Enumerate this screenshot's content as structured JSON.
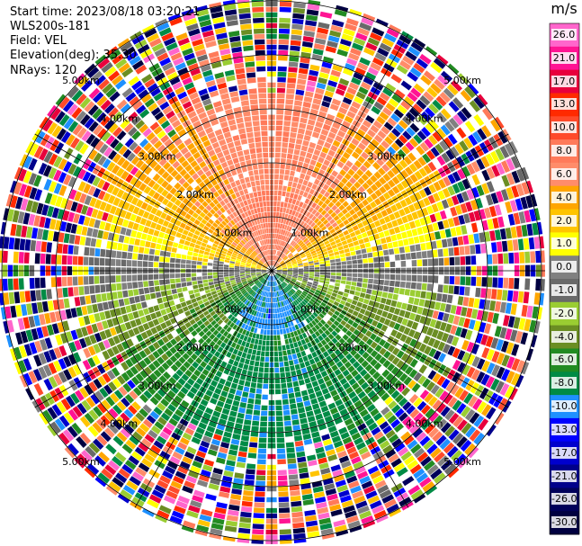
{
  "info": {
    "start_time": "Start time: 2023/08/18 03:20:21",
    "instrument": "WLS200s-181",
    "field": "Field: VEL",
    "elevation": "Elevation(deg): 35.30",
    "nrays": "NRays: 120"
  },
  "colorbar": {
    "unit": "m/s",
    "levels": [
      "26.0",
      "21.0",
      "17.0",
      "13.0",
      "10.0",
      "8.0",
      "6.0",
      "4.0",
      "2.0",
      "1.0",
      "0.0",
      "-1.0",
      "-2.0",
      "-4.0",
      "-6.0",
      "-8.0",
      "-10.0",
      "-13.0",
      "-17.0",
      "-21.0",
      "-26.0",
      "-30.0"
    ],
    "colors": [
      "#ff66cc",
      "#ff1493",
      "#e8003c",
      "#ff2a00",
      "#ff4a2a",
      "#ff7a5a",
      "#ff8c6a",
      "#ffa500",
      "#ffc400",
      "#ffff00",
      "#808080",
      "#696969",
      "#9acd32",
      "#6b8e23",
      "#228b22",
      "#008b45",
      "#1e90ff",
      "#0000ff",
      "#0000cd",
      "#00008b",
      "#00005a",
      "#000040"
    ]
  },
  "rings": {
    "labels": [
      "1.00km",
      "2.00km",
      "3.00km",
      "4.00km",
      "5.00km"
    ]
  },
  "chart_data": {
    "type": "heatmap",
    "description_kind": "PPI radial velocity scan",
    "field": "VEL",
    "elevation_deg": 35.3,
    "nrays": 120,
    "range_rings_km": [
      1,
      2,
      3,
      4,
      5
    ],
    "colorbar_unit": "m/s",
    "colorbar_ticks": [
      26.0,
      21.0,
      17.0,
      13.0,
      10.0,
      8.0,
      6.0,
      4.0,
      2.0,
      1.0,
      0.0,
      -1.0,
      -2.0,
      -4.0,
      -6.0,
      -8.0,
      -10.0,
      -13.0,
      -17.0,
      -21.0,
      -26.0,
      -30.0
    ],
    "pattern": {
      "north_half_near_range": "positive 2 to 8 m/s (yellow/orange/salmon)",
      "south_half_near_range": "negative -2 to -10 m/s (green/blue)",
      "east_west_axis": "near 0 m/s (gray)",
      "far_range_beyond_km": 3.5,
      "far_range": "noise, all colors"
    }
  }
}
